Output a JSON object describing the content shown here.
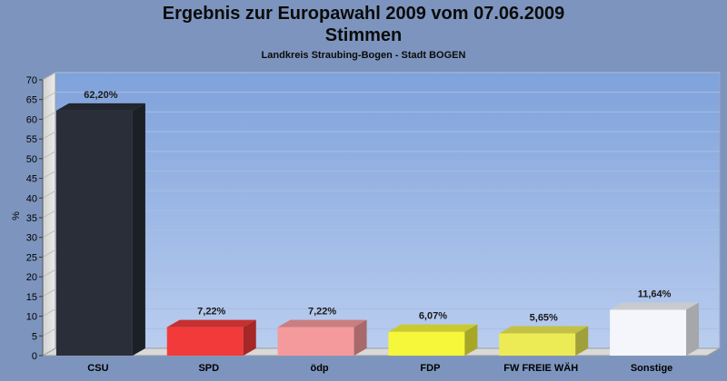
{
  "chart_data": {
    "type": "bar",
    "title": "Ergebnis zur Europawahl 2009 vom 07.06.2009",
    "subtitle": "Stimmen",
    "area_label": "Landkreis Straubing-Bogen - Stadt BOGEN",
    "xlabel": "",
    "ylabel": "%",
    "ylim": [
      0,
      70
    ],
    "yticks": [
      0,
      5,
      10,
      15,
      20,
      25,
      30,
      35,
      40,
      45,
      50,
      55,
      60,
      65,
      70
    ],
    "grid": true,
    "categories": [
      "CSU",
      "SPD",
      "ödp",
      "FDP",
      "FW FREIE WÄH",
      "Sonstige"
    ],
    "values": [
      62.2,
      7.22,
      7.22,
      6.07,
      5.65,
      11.64
    ],
    "value_labels": [
      "62,20%",
      "7,22%",
      "7,22%",
      "6,07%",
      "5,65%",
      "11,64%"
    ],
    "colors": [
      "#2a2e38",
      "#f23a3a",
      "#f59a9c",
      "#f6f63a",
      "#eceb55",
      "#f4f6fb"
    ]
  }
}
